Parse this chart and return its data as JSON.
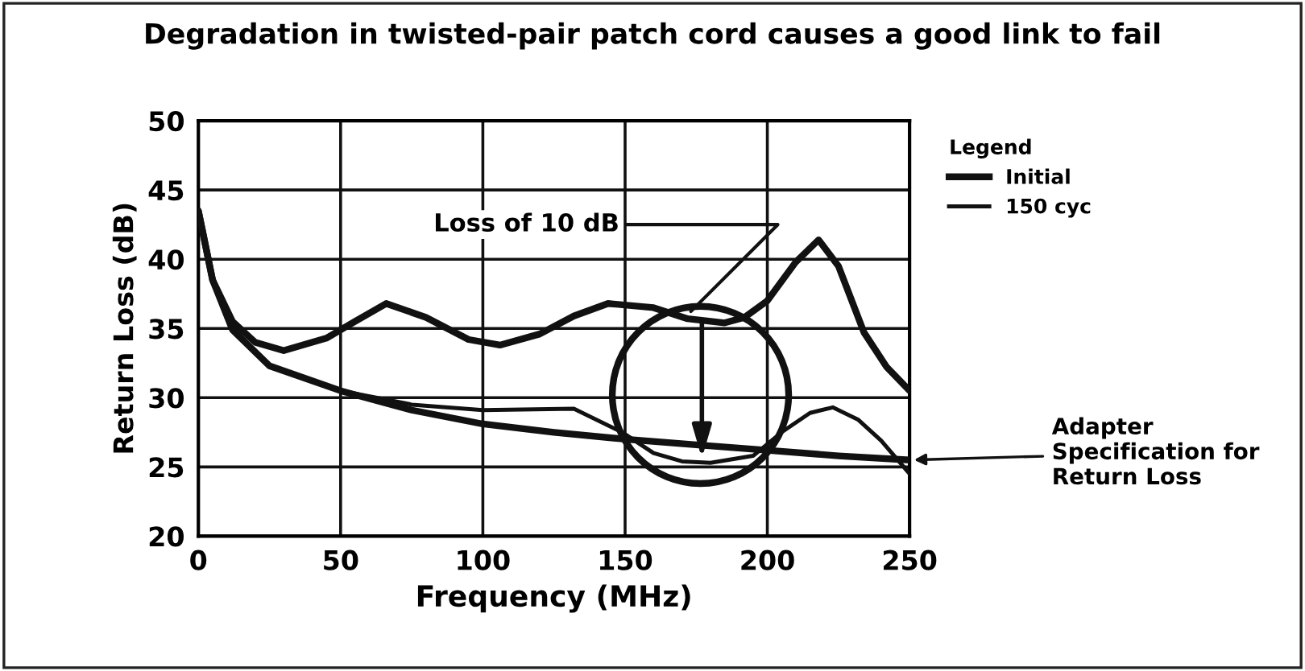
{
  "chart_data": {
    "type": "line",
    "title": "Degradation in twisted-pair patch cord causes a good link to fail",
    "xlabel": "Frequency (MHz)",
    "ylabel": "Return Loss (dB)",
    "legend_title": "Legend",
    "legend": "top right",
    "grid": true,
    "xlim": [
      0,
      250
    ],
    "ylim": [
      20,
      50
    ],
    "xticks": [
      0,
      50,
      100,
      150,
      200,
      250
    ],
    "yticks": [
      20,
      25,
      30,
      35,
      40,
      45,
      50
    ],
    "series": [
      {
        "name": "Initial",
        "color": "#111111",
        "x": [
          0,
          5,
          12,
          20,
          30,
          45,
          55,
          66,
          80,
          95,
          106,
          120,
          132,
          144,
          160,
          172,
          185,
          192,
          200,
          210,
          218,
          225,
          234,
          242,
          250
        ],
        "values": [
          43.5,
          38.5,
          35.5,
          34,
          33.4,
          34.3,
          35.5,
          36.8,
          35.8,
          34.2,
          33.8,
          34.6,
          35.9,
          36.8,
          36.5,
          35.7,
          35.4,
          35.8,
          37,
          39.8,
          41.4,
          39.5,
          34.7,
          32.2,
          30.5
        ]
      },
      {
        "name": "150 cyc",
        "color": "#111111",
        "x": [
          0,
          5,
          12,
          25,
          50,
          75,
          100,
          132,
          149,
          160,
          170,
          180,
          195,
          205,
          215,
          223,
          232,
          240,
          250
        ],
        "values": [
          43.5,
          38.5,
          34.9,
          32.3,
          30.5,
          29.5,
          29.1,
          29.2,
          27.5,
          26,
          25.4,
          25.3,
          25.8,
          27.5,
          28.9,
          29.3,
          28.4,
          26.9,
          24.5
        ]
      },
      {
        "color": "#111111",
        "x": [
          0,
          5,
          12,
          25,
          50,
          75,
          100,
          125,
          150,
          175,
          200,
          225,
          250
        ],
        "values": [
          43.5,
          38.5,
          34.9,
          32.3,
          30.5,
          29.1,
          28.1,
          27.5,
          27,
          26.6,
          26.2,
          25.8,
          25.5
        ]
      }
    ],
    "annotations": [
      {
        "text": "Loss of 10 dB",
        "x": 172,
        "y": 36
      },
      {
        "text": "Adapter Specification for Return Loss",
        "x": 250,
        "y": 25.5
      }
    ]
  }
}
